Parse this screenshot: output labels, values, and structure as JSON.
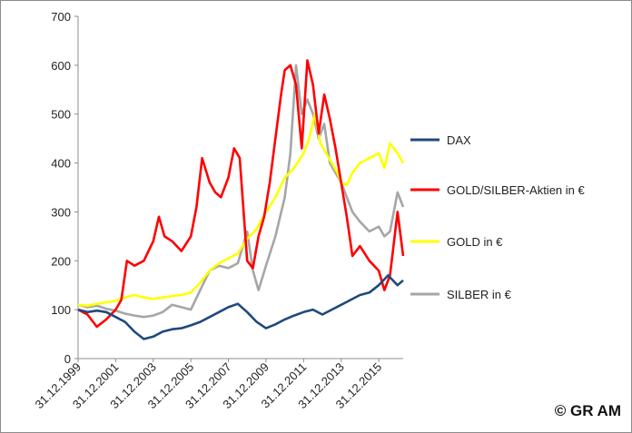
{
  "copyright": "© GR AM",
  "chart_data": {
    "type": "line",
    "title": "",
    "xlabel": "",
    "ylabel": "",
    "ylim": [
      0,
      700
    ],
    "yticks": [
      0,
      100,
      200,
      300,
      400,
      500,
      600,
      700
    ],
    "xlim": [
      1999.0,
      2016.3
    ],
    "x_tick_labels": [
      "31.12.1999",
      "31.12.2001",
      "31.12.2003",
      "31.12.2005",
      "31.12.2007",
      "31.12.2009",
      "31.12.2011",
      "31.12.2013",
      "31.12.2015"
    ],
    "x_tick_years": [
      1999,
      2001,
      2003,
      2005,
      2007,
      2009,
      2011,
      2013,
      2015
    ],
    "grid": false,
    "legend_position": "right",
    "series": [
      {
        "name": "DAX",
        "color": "#1f497d",
        "x": [
          1999.0,
          1999.5,
          2000.0,
          2000.5,
          2001.0,
          2001.5,
          2002.0,
          2002.5,
          2003.0,
          2003.5,
          2004.0,
          2004.5,
          2005.0,
          2005.5,
          2006.0,
          2006.5,
          2007.0,
          2007.5,
          2008.0,
          2008.5,
          2009.0,
          2009.5,
          2010.0,
          2010.5,
          2011.0,
          2011.5,
          2012.0,
          2012.5,
          2013.0,
          2013.5,
          2014.0,
          2014.5,
          2015.0,
          2015.5,
          2016.0,
          2016.3
        ],
        "values": [
          100,
          95,
          98,
          95,
          85,
          75,
          55,
          40,
          45,
          55,
          60,
          62,
          68,
          75,
          85,
          95,
          105,
          112,
          95,
          75,
          62,
          70,
          80,
          88,
          95,
          100,
          90,
          100,
          110,
          120,
          130,
          135,
          150,
          170,
          150,
          160
        ]
      },
      {
        "name": "GOLD/SILBER-Aktien in €",
        "color": "#ff0000",
        "x": [
          1999.0,
          1999.5,
          2000.0,
          2000.5,
          2001.0,
          2001.3,
          2001.6,
          2002.0,
          2002.5,
          2003.0,
          2003.3,
          2003.6,
          2004.0,
          2004.5,
          2005.0,
          2005.3,
          2005.6,
          2006.0,
          2006.3,
          2006.6,
          2007.0,
          2007.3,
          2007.6,
          2008.0,
          2008.3,
          2008.6,
          2008.9,
          2009.2,
          2009.5,
          2009.8,
          2010.0,
          2010.3,
          2010.6,
          2010.9,
          2011.2,
          2011.5,
          2011.8,
          2012.1,
          2012.4,
          2012.7,
          2013.0,
          2013.3,
          2013.6,
          2014.0,
          2014.5,
          2015.0,
          2015.3,
          2015.6,
          2016.0,
          2016.3
        ],
        "values": [
          100,
          90,
          65,
          80,
          100,
          120,
          200,
          190,
          200,
          240,
          290,
          250,
          240,
          220,
          250,
          310,
          410,
          360,
          340,
          330,
          370,
          430,
          410,
          200,
          185,
          250,
          290,
          360,
          450,
          540,
          590,
          600,
          560,
          430,
          610,
          560,
          460,
          540,
          490,
          430,
          360,
          290,
          210,
          230,
          200,
          180,
          140,
          170,
          300,
          210
        ]
      },
      {
        "name": "GOLD in €",
        "color": "#ffff00",
        "x": [
          1999.0,
          1999.5,
          2000.0,
          2000.5,
          2001.0,
          2001.5,
          2002.0,
          2002.5,
          2003.0,
          2003.5,
          2004.0,
          2004.5,
          2005.0,
          2005.5,
          2006.0,
          2006.5,
          2007.0,
          2007.5,
          2008.0,
          2008.5,
          2009.0,
          2009.5,
          2010.0,
          2010.5,
          2011.0,
          2011.3,
          2011.6,
          2011.9,
          2012.2,
          2012.5,
          2012.8,
          2013.0,
          2013.3,
          2013.6,
          2014.0,
          2014.5,
          2015.0,
          2015.3,
          2015.6,
          2016.0,
          2016.3
        ],
        "values": [
          110,
          108,
          112,
          115,
          118,
          125,
          130,
          125,
          122,
          125,
          128,
          130,
          135,
          155,
          180,
          195,
          205,
          215,
          245,
          265,
          300,
          330,
          370,
          390,
          420,
          450,
          500,
          440,
          420,
          400,
          380,
          360,
          355,
          380,
          400,
          410,
          420,
          390,
          440,
          420,
          400
        ]
      },
      {
        "name": "SILBER in €",
        "color": "#a6a6a6",
        "x": [
          1999.0,
          1999.5,
          2000.0,
          2000.5,
          2001.0,
          2001.5,
          2002.0,
          2002.5,
          2003.0,
          2003.5,
          2004.0,
          2004.5,
          2005.0,
          2005.5,
          2006.0,
          2006.5,
          2007.0,
          2007.5,
          2008.0,
          2008.3,
          2008.6,
          2009.0,
          2009.5,
          2010.0,
          2010.3,
          2010.6,
          2010.9,
          2011.2,
          2011.5,
          2011.8,
          2012.1,
          2012.4,
          2012.7,
          2013.0,
          2013.3,
          2013.6,
          2014.0,
          2014.5,
          2015.0,
          2015.3,
          2015.6,
          2016.0,
          2016.3
        ],
        "values": [
          110,
          105,
          108,
          102,
          98,
          92,
          88,
          85,
          88,
          95,
          110,
          105,
          100,
          140,
          180,
          190,
          185,
          195,
          260,
          180,
          140,
          190,
          250,
          330,
          420,
          600,
          500,
          530,
          500,
          450,
          480,
          400,
          380,
          360,
          330,
          300,
          280,
          260,
          270,
          250,
          260,
          340,
          310
        ]
      }
    ]
  }
}
